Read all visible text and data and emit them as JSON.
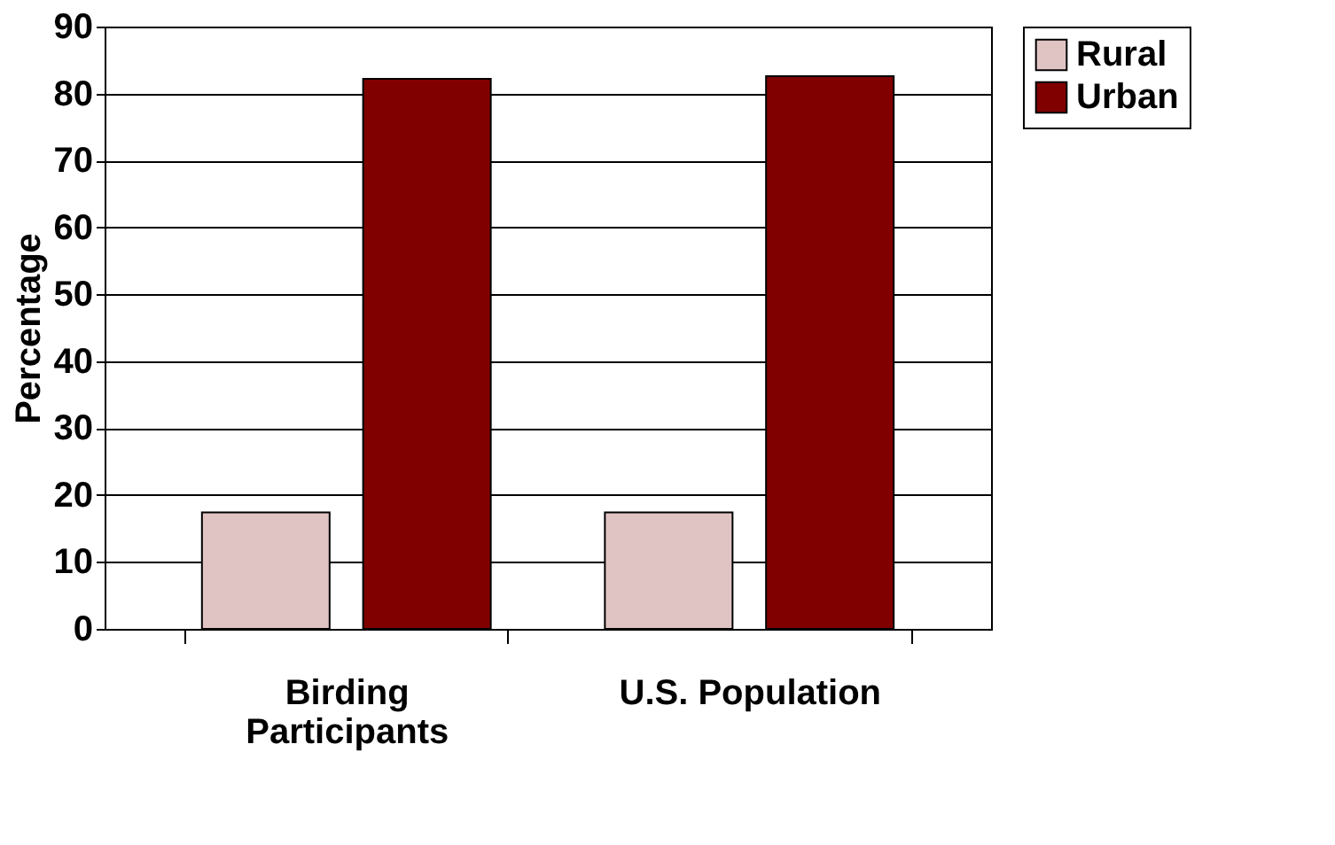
{
  "chart_data": {
    "type": "bar",
    "ylabel": "Percentage",
    "categories": [
      "Birding Participants",
      "U.S. Population"
    ],
    "series": [
      {
        "name": "Rural",
        "color": "#e0c4c4",
        "values": [
          17.4,
          17.4
        ]
      },
      {
        "name": "Urban",
        "color": "#800000",
        "values": [
          82.2,
          82.6
        ]
      }
    ],
    "ylim": [
      0,
      90
    ],
    "yticks": [
      0,
      10,
      20,
      30,
      40,
      50,
      60,
      70,
      80,
      90
    ],
    "grid": "y",
    "legend": "right"
  }
}
